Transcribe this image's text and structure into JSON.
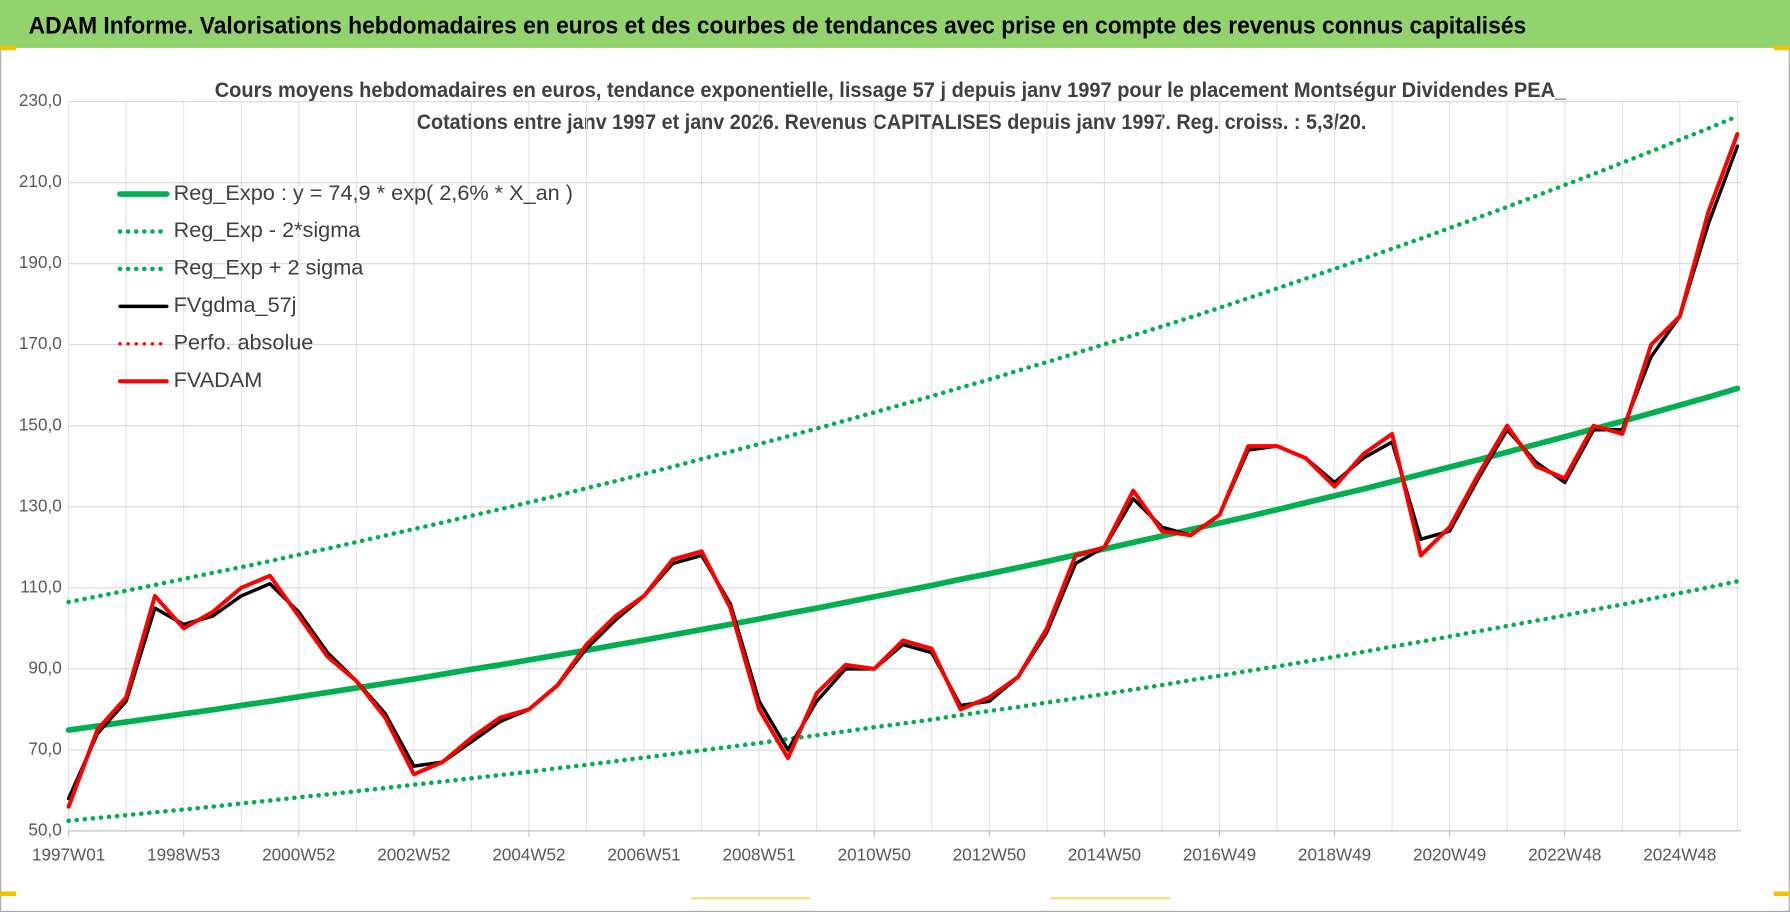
{
  "page_title": "ADAM Informe. Valorisations hebdomadaires en euros et des courbes de tendances avec prise en compte des revenus connus capitalisés",
  "chart_data": {
    "type": "line",
    "title": [
      "Cours moyens hebdomadaires en euros, tendance exponentielle, lissage 57 j depuis janv 1997 pour le placement Montségur Dividendes PEA_",
      "Cotations entre janv 1997 et janv 2026. Revenus CAPITALISES depuis janv 1997. Reg. croiss. : 5,3/20."
    ],
    "categories": [
      "1997W01",
      null,
      null,
      null,
      "1998W53",
      null,
      null,
      null,
      "2000W52",
      null,
      null,
      null,
      "2002W52",
      null,
      null,
      null,
      "2004W52",
      null,
      null,
      null,
      "2006W51",
      null,
      null,
      null,
      "2008W51",
      null,
      null,
      null,
      "2010W50",
      null,
      null,
      null,
      "2012W50",
      null,
      null,
      null,
      "2014W50",
      null,
      null,
      null,
      "2016W49",
      null,
      null,
      null,
      "2018W49",
      null,
      null,
      null,
      "2020W49",
      null,
      null,
      null,
      "2022W48",
      null,
      null,
      null,
      "2024W48",
      null,
      null
    ],
    "ylim": [
      50,
      230
    ],
    "yticks": [
      {
        "value": 50,
        "label": "50,0"
      },
      {
        "value": 70,
        "label": "70,0"
      },
      {
        "value": 90,
        "label": "90,0"
      },
      {
        "value": 110,
        "label": "110,0"
      },
      {
        "value": 130,
        "label": "130,0"
      },
      {
        "value": 150,
        "label": "150,0"
      },
      {
        "value": 170,
        "label": "170,0"
      },
      {
        "value": 190,
        "label": "190,0"
      },
      {
        "value": 210,
        "label": "210,0"
      },
      {
        "value": 230,
        "label": "230,0"
      }
    ],
    "grid": true,
    "legend": "upper left",
    "series": [
      {
        "name": "Reg_Expo : y = 74,9 * exp( 2,6% *  X_an )",
        "color": "#00b050",
        "line_style": "solid",
        "line_width": 5,
        "values": [
          74.9,
          75.9,
          76.9,
          77.9,
          78.9,
          79.9,
          81.0,
          82.0,
          83.1,
          84.2,
          85.3,
          86.4,
          87.5,
          88.7,
          89.9,
          91.0,
          92.2,
          93.4,
          94.6,
          95.9,
          97.1,
          98.4,
          99.7,
          101.0,
          102.3,
          103.7,
          105.0,
          106.4,
          107.8,
          109.2,
          110.6,
          112.1,
          113.5,
          115.0,
          116.5,
          118.1,
          119.6,
          121.2,
          122.8,
          124.4,
          126.0,
          127.6,
          129.3,
          131.0,
          132.7,
          134.4,
          136.2,
          138.0,
          139.8,
          141.6,
          143.5,
          145.4,
          147.3,
          149.2,
          151.1,
          153.1,
          155.1,
          157.1,
          159.2
        ]
      },
      {
        "name": "Reg_Exp - 2*sigma",
        "color": "#00b050",
        "line_style": "dotted",
        "line_width": 4,
        "values": [
          52.5,
          53.2,
          53.9,
          54.6,
          55.3,
          56.0,
          56.8,
          57.5,
          58.3,
          59.0,
          59.8,
          60.6,
          61.4,
          62.2,
          63.0,
          63.8,
          64.6,
          65.5,
          66.3,
          67.2,
          68.1,
          69.0,
          69.9,
          70.8,
          71.7,
          72.7,
          73.6,
          74.6,
          75.6,
          76.5,
          77.5,
          78.6,
          79.6,
          80.6,
          81.7,
          82.7,
          83.8,
          84.9,
          86.0,
          87.2,
          88.3,
          89.5,
          90.6,
          91.8,
          93.0,
          94.2,
          95.5,
          96.7,
          98.0,
          99.3,
          100.6,
          101.9,
          103.2,
          104.6,
          105.9,
          107.3,
          108.7,
          110.1,
          111.6
        ]
      },
      {
        "name": "Reg_Exp + 2 sigma",
        "color": "#00b050",
        "line_style": "dotted",
        "line_width": 4,
        "values": [
          106.5,
          107.9,
          109.3,
          110.7,
          112.2,
          113.7,
          115.1,
          116.6,
          118.2,
          119.7,
          121.3,
          122.9,
          124.5,
          126.1,
          127.8,
          129.4,
          131.1,
          132.8,
          134.6,
          136.3,
          138.1,
          139.9,
          141.8,
          143.6,
          145.5,
          147.4,
          149.3,
          151.3,
          153.3,
          155.3,
          157.3,
          159.4,
          161.4,
          163.6,
          165.7,
          167.9,
          170.1,
          172.3,
          174.5,
          176.8,
          179.1,
          181.5,
          183.9,
          186.3,
          188.7,
          191.2,
          193.7,
          196.2,
          198.8,
          201.4,
          204.0,
          206.7,
          209.4,
          212.1,
          214.9,
          217.7,
          220.6,
          223.4,
          226.4
        ]
      },
      {
        "name": "FVgdma_57j",
        "color": "#000000",
        "line_style": "solid",
        "line_width": 3,
        "values": [
          58,
          74,
          82,
          105,
          101,
          103,
          108,
          111,
          104,
          94,
          87,
          79,
          66,
          67,
          72,
          77,
          80,
          86,
          95,
          102,
          108,
          116,
          118,
          106,
          82,
          70,
          82,
          90,
          90,
          96,
          94,
          81,
          82,
          88,
          99,
          116,
          120,
          132,
          125,
          123,
          128,
          144,
          145,
          142,
          136,
          142,
          146,
          122,
          124,
          137,
          149,
          141,
          136,
          149,
          149,
          167,
          177,
          200,
          219
        ]
      },
      {
        "name": "Perfo. absolue",
        "color": "#ff0000",
        "line_style": "dotted",
        "line_width": 3,
        "values": [
          56,
          75,
          83,
          108,
          100,
          104,
          110,
          113,
          103,
          93,
          87,
          78,
          64,
          67,
          73,
          78,
          80,
          86,
          96,
          103,
          108,
          117,
          119,
          105,
          80,
          68,
          84,
          91,
          90,
          97,
          95,
          80,
          83,
          88,
          100,
          118,
          120,
          134,
          124,
          123,
          128,
          145,
          145,
          142,
          135,
          143,
          148,
          118,
          125,
          138,
          150,
          140,
          137,
          150,
          148,
          170,
          177,
          203,
          222
        ]
      },
      {
        "name": "FVADAM",
        "color": "#ff0000",
        "line_style": "solid",
        "line_width": 3.5,
        "values": [
          56,
          75,
          83,
          108,
          100,
          104,
          110,
          113,
          103,
          93,
          87,
          78,
          64,
          67,
          73,
          78,
          80,
          86,
          96,
          103,
          108,
          117,
          119,
          105,
          80,
          68,
          84,
          91,
          90,
          97,
          95,
          80,
          83,
          88,
          100,
          118,
          120,
          134,
          124,
          123,
          128,
          145,
          145,
          142,
          135,
          143,
          148,
          118,
          125,
          138,
          150,
          140,
          137,
          150,
          148,
          170,
          177,
          203,
          222
        ]
      }
    ]
  }
}
